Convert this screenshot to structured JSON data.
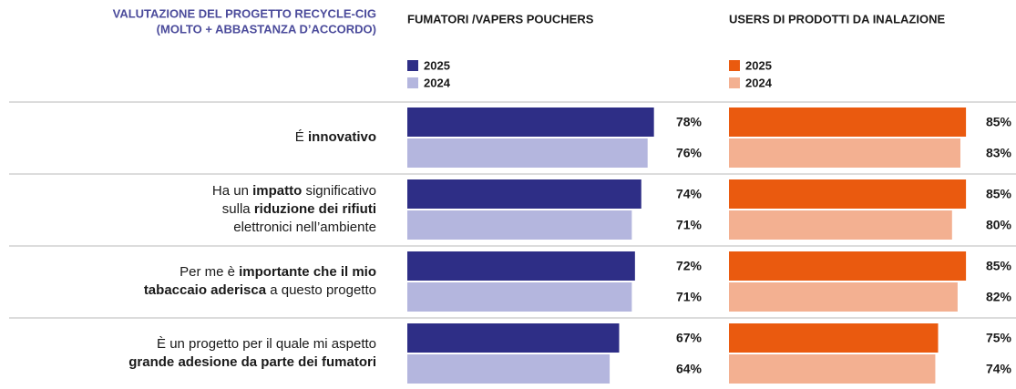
{
  "title": [
    "VALUTAZIONE DEL PROGETTO RECYCLE-CIG",
    "(MOLTO + ABBASTANZA D’ACCORDO)"
  ],
  "row_labels": [
    [
      [
        {
          "text": "É "
        },
        {
          "text": "innovativo",
          "bold": true
        }
      ]
    ],
    [
      [
        {
          "text": "Ha un "
        },
        {
          "text": "impatto",
          "bold": true
        },
        {
          "text": " significativo"
        }
      ],
      [
        {
          "text": "sulla "
        },
        {
          "text": "riduzione dei rifiuti",
          "bold": true
        }
      ],
      [
        {
          "text": "elettronici nell’ambiente"
        }
      ]
    ],
    [
      [
        {
          "text": "Per me è "
        },
        {
          "text": "importante che il mio",
          "bold": true
        }
      ],
      [
        {
          "text": "tabaccaio aderisca",
          "bold": true
        },
        {
          "text": " a questo progetto"
        }
      ]
    ],
    [
      [
        {
          "text": "È un progetto per il quale mi aspetto"
        }
      ],
      [
        {
          "text": "grande adesione da parte dei fumatori",
          "bold": true
        }
      ]
    ]
  ],
  "chart_data": [
    {
      "type": "bar",
      "orientation": "horizontal",
      "title": "FUMATORI /VAPERS POUCHERS",
      "series": [
        {
          "name": "2025",
          "color": "#2e2e86",
          "values": [
            78,
            74,
            72,
            67
          ],
          "value_labels": [
            "78%",
            "74%",
            "72%",
            "67%"
          ]
        },
        {
          "name": "2024",
          "color": "#b4b6de",
          "values": [
            76,
            71,
            71,
            64
          ],
          "value_labels": [
            "76%",
            "71%",
            "71%",
            "64%"
          ]
        }
      ]
    },
    {
      "type": "bar",
      "orientation": "horizontal",
      "title": "USERS DI PRODOTTI DA INALAZIONE",
      "series": [
        {
          "name": "2025",
          "color": "#ea5a0f",
          "values": [
            85,
            85,
            85,
            75
          ],
          "value_labels": [
            "85%",
            "85%",
            "85%",
            "75%"
          ]
        },
        {
          "name": "2024",
          "color": "#f3b091",
          "values": [
            83,
            80,
            82,
            74
          ],
          "value_labels": [
            "83%",
            "80%",
            "82%",
            "74%"
          ]
        }
      ]
    }
  ]
}
